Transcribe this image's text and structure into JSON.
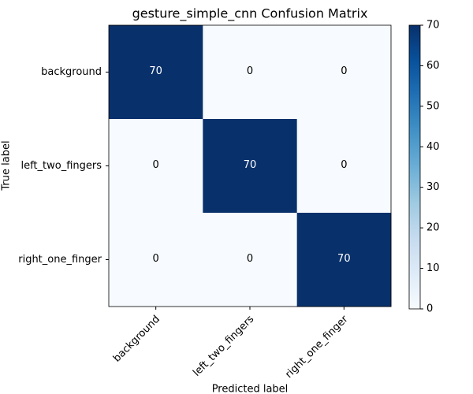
{
  "chart_data": {
    "type": "heatmap",
    "title": "gesture_simple_cnn Confusion Matrix",
    "x_label": "Predicted label",
    "y_label": "True label",
    "x_categories": [
      "background",
      "left_two_fingers",
      "right_one_finger"
    ],
    "y_categories": [
      "background",
      "left_two_fingers",
      "right_one_finger"
    ],
    "values": [
      [
        70,
        0,
        0
      ],
      [
        0,
        70,
        0
      ],
      [
        0,
        0,
        70
      ]
    ],
    "colormap": "Blues",
    "clim": [
      0,
      70
    ],
    "cticks": [
      0,
      10,
      20,
      30,
      40,
      50,
      60,
      70
    ]
  }
}
